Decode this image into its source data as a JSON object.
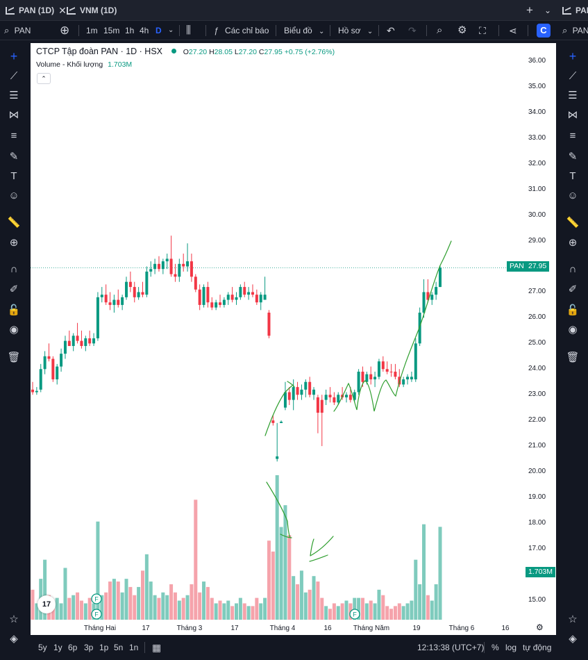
{
  "tabs": [
    {
      "label": "PAN (1D)",
      "active": true
    },
    {
      "label": "VNM (1D)",
      "active": false
    },
    {
      "label": "PAN",
      "active": false
    }
  ],
  "toolbar": {
    "symbol": "PAN",
    "intervals": [
      "1m",
      "15m",
      "1h",
      "4h",
      "D"
    ],
    "active_interval": "D",
    "indicators_label": "Các chỉ báo",
    "chart_type_label": "Biểu đồ",
    "profile_label": "Hồ sơ",
    "right_symbol": "PAN"
  },
  "legend": {
    "title": "CTCP Tập đoàn PAN · 1D · HSX",
    "o_label": "O",
    "o": "27.20",
    "h_label": "H",
    "h": "28.05",
    "l_label": "L",
    "l": "27.20",
    "c_label": "C",
    "c": "27.95",
    "change": "+0.75 (+2.76%)",
    "volume_label": "Volume - Khối lượng",
    "volume_value": "1.703M"
  },
  "price_scale": {
    "labels": [
      "36.00",
      "35.00",
      "34.00",
      "33.00",
      "32.00",
      "31.00",
      "30.00",
      "29.00",
      "28.00",
      "27.00",
      "26.00",
      "25.00",
      "24.00",
      "23.00",
      "22.00",
      "21.00",
      "20.00",
      "19.00",
      "18.00",
      "17.00",
      "16.00",
      "15.00"
    ],
    "last_symbol": "PAN",
    "last_price": "27.95",
    "last_volume": "1.703M"
  },
  "time_scale": {
    "labels": [
      "Tháng Hai",
      "17",
      "Tháng 3",
      "17",
      "Tháng 4",
      "16",
      "Tháng Năm",
      "19",
      "Tháng 6",
      "16"
    ]
  },
  "bottom": {
    "ranges": [
      "5y",
      "1y",
      "6p",
      "3p",
      "1p",
      "5n",
      "1n"
    ],
    "clock": "12:13:38 (UTC+7)",
    "percent_label": "%",
    "log_label": "log",
    "auto_label": "tự động"
  },
  "events": [
    {
      "label": "F"
    },
    {
      "label": "F"
    },
    {
      "label": "F"
    }
  ],
  "logo_text": "17",
  "colors": {
    "up": "#089981",
    "down": "#f23645",
    "vol_up": "#7fcbbd",
    "vol_down": "#f5a3ab",
    "drawing": "#2e9e2e",
    "accent": "#2962ff"
  },
  "chart_data": {
    "type": "candlestick",
    "title": "CTCP Tập đoàn PAN · 1D · HSX",
    "ylim": [
      14.4,
      36.6
    ],
    "volume_unit": "M",
    "candles": [
      {
        "o": 23.2,
        "h": 23.5,
        "l": 23.0,
        "c": 23.1,
        "v": 0.55,
        "up": false
      },
      {
        "o": 23.1,
        "h": 23.3,
        "l": 23.0,
        "c": 23.15,
        "v": 0.3,
        "up": true
      },
      {
        "o": 23.2,
        "h": 24.2,
        "l": 23.1,
        "c": 24.0,
        "v": 0.75,
        "up": true
      },
      {
        "o": 24.0,
        "h": 24.7,
        "l": 23.8,
        "c": 24.5,
        "v": 1.1,
        "up": true
      },
      {
        "o": 24.5,
        "h": 25.0,
        "l": 24.3,
        "c": 24.4,
        "v": 0.45,
        "up": false
      },
      {
        "o": 24.4,
        "h": 24.5,
        "l": 23.5,
        "c": 23.6,
        "v": 0.35,
        "up": false
      },
      {
        "o": 23.6,
        "h": 24.2,
        "l": 23.4,
        "c": 24.1,
        "v": 0.4,
        "up": true
      },
      {
        "o": 24.1,
        "h": 24.8,
        "l": 23.9,
        "c": 24.6,
        "v": 0.3,
        "up": true
      },
      {
        "o": 24.6,
        "h": 25.3,
        "l": 24.4,
        "c": 25.1,
        "v": 0.95,
        "up": true
      },
      {
        "o": 25.1,
        "h": 25.5,
        "l": 24.9,
        "c": 24.9,
        "v": 0.4,
        "up": false
      },
      {
        "o": 24.9,
        "h": 25.4,
        "l": 24.7,
        "c": 25.3,
        "v": 0.45,
        "up": true
      },
      {
        "o": 25.3,
        "h": 25.8,
        "l": 25.0,
        "c": 25.1,
        "v": 0.5,
        "up": false
      },
      {
        "o": 25.1,
        "h": 25.5,
        "l": 24.8,
        "c": 24.9,
        "v": 0.35,
        "up": false
      },
      {
        "o": 24.9,
        "h": 25.3,
        "l": 24.7,
        "c": 25.2,
        "v": 0.3,
        "up": true
      },
      {
        "o": 25.2,
        "h": 25.5,
        "l": 24.9,
        "c": 25.0,
        "v": 0.4,
        "up": false
      },
      {
        "o": 25.0,
        "h": 25.4,
        "l": 24.9,
        "c": 25.2,
        "v": 0.3,
        "up": true
      },
      {
        "o": 25.2,
        "h": 27.0,
        "l": 25.1,
        "c": 26.8,
        "v": 1.8,
        "up": true
      },
      {
        "o": 26.8,
        "h": 27.2,
        "l": 26.6,
        "c": 26.9,
        "v": 0.45,
        "up": true
      },
      {
        "o": 26.9,
        "h": 27.3,
        "l": 26.5,
        "c": 26.6,
        "v": 0.5,
        "up": false
      },
      {
        "o": 26.6,
        "h": 27.0,
        "l": 26.3,
        "c": 26.5,
        "v": 0.7,
        "up": false
      },
      {
        "o": 26.5,
        "h": 26.9,
        "l": 26.2,
        "c": 26.7,
        "v": 0.75,
        "up": true
      },
      {
        "o": 26.7,
        "h": 27.1,
        "l": 26.4,
        "c": 26.5,
        "v": 0.7,
        "up": false
      },
      {
        "o": 26.5,
        "h": 26.9,
        "l": 26.3,
        "c": 26.8,
        "v": 0.5,
        "up": true
      },
      {
        "o": 26.8,
        "h": 27.6,
        "l": 26.7,
        "c": 27.4,
        "v": 0.75,
        "up": true
      },
      {
        "o": 27.4,
        "h": 27.8,
        "l": 27.0,
        "c": 27.2,
        "v": 0.6,
        "up": false
      },
      {
        "o": 27.2,
        "h": 27.4,
        "l": 26.6,
        "c": 26.8,
        "v": 0.45,
        "up": false
      },
      {
        "o": 26.8,
        "h": 27.2,
        "l": 26.7,
        "c": 27.0,
        "v": 0.6,
        "up": true
      },
      {
        "o": 27.0,
        "h": 27.4,
        "l": 26.8,
        "c": 26.9,
        "v": 0.9,
        "up": false
      },
      {
        "o": 26.9,
        "h": 28.0,
        "l": 26.8,
        "c": 27.8,
        "v": 1.2,
        "up": true
      },
      {
        "o": 27.8,
        "h": 28.2,
        "l": 27.6,
        "c": 27.9,
        "v": 0.7,
        "up": true
      },
      {
        "o": 27.9,
        "h": 28.3,
        "l": 27.7,
        "c": 28.1,
        "v": 0.45,
        "up": true
      },
      {
        "o": 28.1,
        "h": 28.4,
        "l": 27.8,
        "c": 27.9,
        "v": 0.4,
        "up": false
      },
      {
        "o": 27.9,
        "h": 28.3,
        "l": 27.7,
        "c": 28.2,
        "v": 0.5,
        "up": true
      },
      {
        "o": 28.2,
        "h": 28.5,
        "l": 27.9,
        "c": 28.3,
        "v": 0.45,
        "up": true
      },
      {
        "o": 28.3,
        "h": 29.2,
        "l": 27.6,
        "c": 27.7,
        "v": 0.65,
        "up": false
      },
      {
        "o": 27.7,
        "h": 28.1,
        "l": 27.4,
        "c": 27.6,
        "v": 0.5,
        "up": false
      },
      {
        "o": 27.6,
        "h": 28.3,
        "l": 27.4,
        "c": 28.1,
        "v": 0.35,
        "up": true
      },
      {
        "o": 28.1,
        "h": 28.5,
        "l": 27.8,
        "c": 28.0,
        "v": 0.4,
        "up": false
      },
      {
        "o": 28.0,
        "h": 28.9,
        "l": 27.8,
        "c": 28.2,
        "v": 0.45,
        "up": true
      },
      {
        "o": 28.2,
        "h": 28.5,
        "l": 27.4,
        "c": 27.6,
        "v": 0.65,
        "up": false
      },
      {
        "o": 27.6,
        "h": 27.7,
        "l": 27.0,
        "c": 27.1,
        "v": 2.2,
        "up": false
      },
      {
        "o": 27.1,
        "h": 27.3,
        "l": 26.3,
        "c": 26.5,
        "v": 0.5,
        "up": false
      },
      {
        "o": 26.5,
        "h": 27.3,
        "l": 26.4,
        "c": 27.2,
        "v": 0.7,
        "up": true
      },
      {
        "o": 27.2,
        "h": 27.4,
        "l": 26.4,
        "c": 26.6,
        "v": 0.6,
        "up": false
      },
      {
        "o": 26.6,
        "h": 26.8,
        "l": 26.3,
        "c": 26.4,
        "v": 0.4,
        "up": false
      },
      {
        "o": 26.4,
        "h": 26.7,
        "l": 26.3,
        "c": 26.6,
        "v": 0.3,
        "up": true
      },
      {
        "o": 26.6,
        "h": 26.9,
        "l": 26.4,
        "c": 26.5,
        "v": 0.35,
        "up": false
      },
      {
        "o": 26.5,
        "h": 26.8,
        "l": 26.4,
        "c": 26.7,
        "v": 0.3,
        "up": true
      },
      {
        "o": 26.7,
        "h": 27.0,
        "l": 26.5,
        "c": 26.9,
        "v": 0.35,
        "up": true
      },
      {
        "o": 26.9,
        "h": 27.2,
        "l": 26.6,
        "c": 26.7,
        "v": 0.25,
        "up": false
      },
      {
        "o": 26.7,
        "h": 27.0,
        "l": 26.5,
        "c": 26.8,
        "v": 0.3,
        "up": true
      },
      {
        "o": 26.8,
        "h": 27.3,
        "l": 26.7,
        "c": 27.2,
        "v": 0.4,
        "up": true
      },
      {
        "o": 27.2,
        "h": 27.4,
        "l": 26.8,
        "c": 26.9,
        "v": 0.3,
        "up": false
      },
      {
        "o": 26.9,
        "h": 27.2,
        "l": 26.7,
        "c": 27.0,
        "v": 0.25,
        "up": true
      },
      {
        "o": 27.0,
        "h": 27.3,
        "l": 26.8,
        "c": 26.9,
        "v": 0.25,
        "up": false
      },
      {
        "o": 26.9,
        "h": 27.1,
        "l": 26.5,
        "c": 26.6,
        "v": 0.4,
        "up": false
      },
      {
        "o": 26.6,
        "h": 27.0,
        "l": 26.3,
        "c": 26.9,
        "v": 0.3,
        "up": true
      },
      {
        "o": 26.9,
        "h": 27.6,
        "l": 26.7,
        "c": 26.7,
        "v": 0.4,
        "up": true
      },
      {
        "o": 26.2,
        "h": 26.3,
        "l": 25.2,
        "c": 25.3,
        "v": 1.45,
        "up": false
      },
      {
        "o": 22.0,
        "h": 22.2,
        "l": 21.8,
        "c": 21.9,
        "v": 1.25,
        "up": false
      },
      {
        "o": 20.6,
        "h": 21.9,
        "l": 20.4,
        "c": 20.5,
        "v": 2.65,
        "up": true
      },
      {
        "o": 21.9,
        "h": 22.0,
        "l": 21.9,
        "c": 21.95,
        "v": 1.7,
        "up": true
      },
      {
        "o": 22.5,
        "h": 23.5,
        "l": 22.4,
        "c": 23.1,
        "v": 2.1,
        "up": true
      },
      {
        "o": 23.1,
        "h": 23.3,
        "l": 22.6,
        "c": 22.8,
        "v": 1.55,
        "up": false
      },
      {
        "o": 22.8,
        "h": 23.6,
        "l": 22.4,
        "c": 23.3,
        "v": 0.8,
        "up": true
      },
      {
        "o": 23.3,
        "h": 23.5,
        "l": 22.8,
        "c": 23.0,
        "v": 0.65,
        "up": false
      },
      {
        "o": 23.0,
        "h": 23.4,
        "l": 22.8,
        "c": 23.2,
        "v": 0.9,
        "up": true
      },
      {
        "o": 23.2,
        "h": 23.6,
        "l": 22.9,
        "c": 23.5,
        "v": 0.5,
        "up": true
      },
      {
        "o": 23.5,
        "h": 23.7,
        "l": 22.9,
        "c": 23.0,
        "v": 0.55,
        "up": false
      },
      {
        "o": 23.0,
        "h": 23.3,
        "l": 22.8,
        "c": 23.2,
        "v": 0.8,
        "up": true
      },
      {
        "o": 22.9,
        "h": 23.0,
        "l": 21.5,
        "c": 22.3,
        "v": 0.7,
        "up": false
      },
      {
        "o": 22.3,
        "h": 23.0,
        "l": 21.0,
        "c": 22.8,
        "v": 0.4,
        "up": false
      },
      {
        "o": 22.8,
        "h": 23.2,
        "l": 22.6,
        "c": 23.0,
        "v": 0.25,
        "up": true
      },
      {
        "o": 23.0,
        "h": 23.3,
        "l": 22.7,
        "c": 22.9,
        "v": 0.2,
        "up": false
      },
      {
        "o": 22.9,
        "h": 23.1,
        "l": 22.6,
        "c": 22.7,
        "v": 0.3,
        "up": false
      },
      {
        "o": 22.7,
        "h": 23.1,
        "l": 22.6,
        "c": 23.0,
        "v": 0.25,
        "up": true
      },
      {
        "o": 23.0,
        "h": 23.3,
        "l": 22.8,
        "c": 22.9,
        "v": 0.3,
        "up": false
      },
      {
        "o": 22.9,
        "h": 23.1,
        "l": 22.7,
        "c": 23.0,
        "v": 0.35,
        "up": true
      },
      {
        "o": 23.0,
        "h": 23.3,
        "l": 22.7,
        "c": 22.8,
        "v": 0.3,
        "up": false
      },
      {
        "o": 22.8,
        "h": 23.2,
        "l": 22.7,
        "c": 23.1,
        "v": 0.4,
        "up": true
      },
      {
        "o": 23.1,
        "h": 24.0,
        "l": 23.0,
        "c": 23.9,
        "v": 0.4,
        "up": true
      },
      {
        "o": 23.9,
        "h": 24.1,
        "l": 23.3,
        "c": 23.5,
        "v": 0.4,
        "up": false
      },
      {
        "o": 23.5,
        "h": 23.9,
        "l": 23.4,
        "c": 23.8,
        "v": 0.3,
        "up": true
      },
      {
        "o": 23.8,
        "h": 24.1,
        "l": 23.4,
        "c": 23.6,
        "v": 0.35,
        "up": false
      },
      {
        "o": 23.6,
        "h": 23.9,
        "l": 23.3,
        "c": 23.7,
        "v": 0.3,
        "up": true
      },
      {
        "o": 23.7,
        "h": 24.4,
        "l": 23.6,
        "c": 24.3,
        "v": 0.55,
        "up": true
      },
      {
        "o": 24.3,
        "h": 24.5,
        "l": 23.9,
        "c": 24.0,
        "v": 0.45,
        "up": false
      },
      {
        "o": 24.0,
        "h": 24.3,
        "l": 23.8,
        "c": 23.9,
        "v": 0.25,
        "up": false
      },
      {
        "o": 23.9,
        "h": 24.2,
        "l": 23.7,
        "c": 23.9,
        "v": 0.2,
        "up": false
      },
      {
        "o": 23.9,
        "h": 24.2,
        "l": 23.6,
        "c": 23.7,
        "v": 0.25,
        "up": false
      },
      {
        "o": 23.7,
        "h": 24.0,
        "l": 23.3,
        "c": 23.4,
        "v": 0.3,
        "up": false
      },
      {
        "o": 23.4,
        "h": 23.7,
        "l": 23.3,
        "c": 23.6,
        "v": 0.25,
        "up": true
      },
      {
        "o": 23.6,
        "h": 23.8,
        "l": 23.4,
        "c": 23.7,
        "v": 0.3,
        "up": true
      },
      {
        "o": 23.7,
        "h": 23.9,
        "l": 23.5,
        "c": 23.6,
        "v": 0.35,
        "up": true
      },
      {
        "o": 23.6,
        "h": 25.2,
        "l": 23.5,
        "c": 25.0,
        "v": 1.1,
        "up": true
      },
      {
        "o": 25.0,
        "h": 26.4,
        "l": 24.9,
        "c": 26.2,
        "v": 0.65,
        "up": true
      },
      {
        "o": 26.2,
        "h": 27.5,
        "l": 26.0,
        "c": 27.0,
        "v": 1.75,
        "up": true
      },
      {
        "o": 27.0,
        "h": 27.5,
        "l": 26.6,
        "c": 26.7,
        "v": 0.45,
        "up": false
      },
      {
        "o": 26.7,
        "h": 27.0,
        "l": 26.5,
        "c": 26.9,
        "v": 0.35,
        "up": true
      },
      {
        "o": 26.9,
        "h": 27.4,
        "l": 26.7,
        "c": 27.2,
        "v": 0.65,
        "up": true
      },
      {
        "o": 27.2,
        "h": 28.05,
        "l": 27.2,
        "c": 27.95,
        "v": 1.703,
        "up": true
      }
    ]
  }
}
